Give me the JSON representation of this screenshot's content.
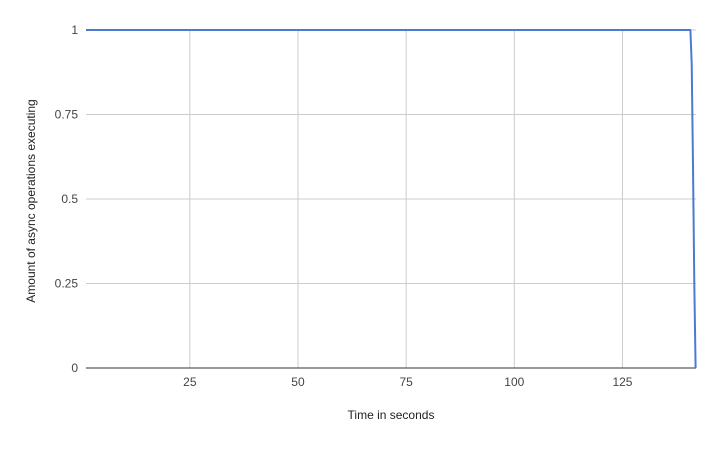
{
  "chart_data": {
    "type": "line",
    "title": "",
    "xlabel": "Time in seconds",
    "ylabel": "Amount of async operations executing",
    "xlim": [
      1,
      142
    ],
    "ylim": [
      0,
      1
    ],
    "x_ticks": [
      25,
      50,
      75,
      100,
      125
    ],
    "y_ticks": [
      0,
      0.25,
      0.5,
      0.75,
      1
    ],
    "grid": true,
    "legend": "none",
    "series": [
      {
        "color": "#4a7bd0",
        "x": [
          1,
          140.7,
          141.0,
          141.3,
          141.6,
          141.9
        ],
        "y": [
          1,
          1,
          0.9,
          0.6,
          0.25,
          0
        ]
      }
    ],
    "colors": {
      "grid": "#cccccc",
      "baseline": "#333333",
      "line": "#4a7bd0"
    }
  }
}
